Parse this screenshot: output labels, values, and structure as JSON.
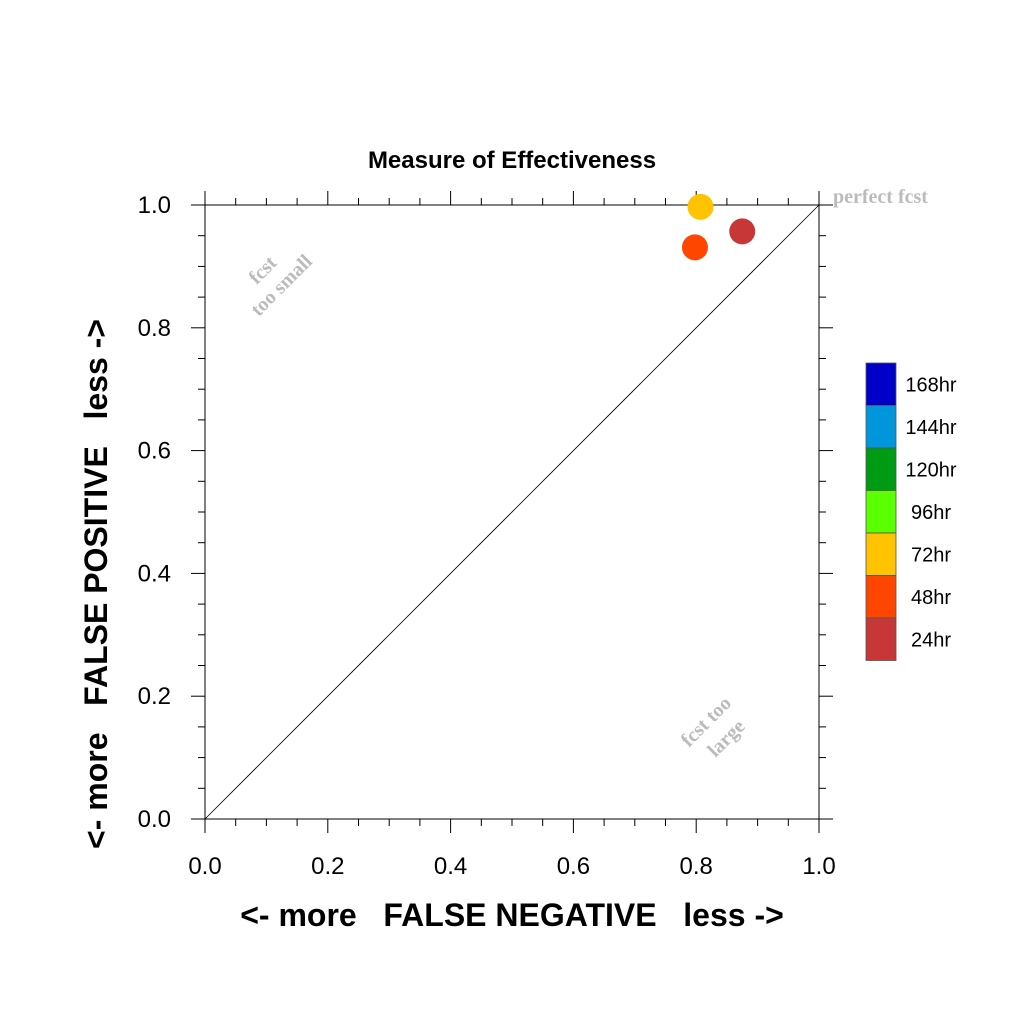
{
  "chart_data": {
    "type": "scatter",
    "title": "Measure of Effectiveness",
    "xlabel": "<- more   FALSE NEGATIVE   less ->",
    "ylabel": "<- more   FALSE POSITIVE   less ->",
    "xlim": [
      0,
      1
    ],
    "ylim": [
      0,
      1
    ],
    "x_ticks": [
      "0.0",
      "0.2",
      "0.4",
      "0.6",
      "0.8",
      "1.0"
    ],
    "y_ticks": [
      "0.0",
      "0.2",
      "0.4",
      "0.6",
      "0.8",
      "1.0"
    ],
    "grid": false,
    "legend_placement": "right",
    "diagonal_line": true,
    "annotations": {
      "perfect": "perfect fcst",
      "too_small": [
        "fcst",
        "too small"
      ],
      "too_large": [
        "fcst too",
        "large"
      ]
    },
    "legend": [
      {
        "label": "168hr",
        "color": "#0000c8"
      },
      {
        "label": "144hr",
        "color": "#0096dc"
      },
      {
        "label": "120hr",
        "color": "#009b14"
      },
      {
        "label": "96hr",
        "color": "#5aff00"
      },
      {
        "label": "72hr",
        "color": "#ffc300"
      },
      {
        "label": "48hr",
        "color": "#ff4600"
      },
      {
        "label": "24hr",
        "color": "#c83737"
      }
    ],
    "points": [
      {
        "label": "72hr",
        "x": 0.807,
        "y": 0.997,
        "color": "#ffc300"
      },
      {
        "label": "48hr",
        "x": 0.798,
        "y": 0.931,
        "color": "#ff4600"
      },
      {
        "label": "24hr",
        "x": 0.875,
        "y": 0.957,
        "color": "#c83737"
      }
    ]
  }
}
